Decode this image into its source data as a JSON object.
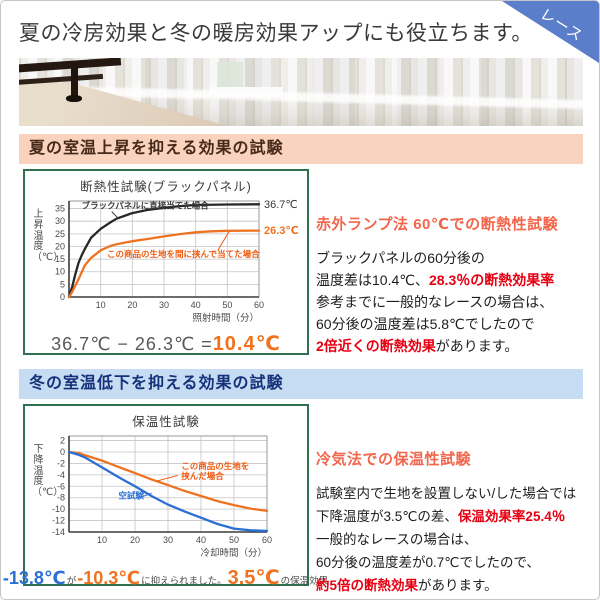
{
  "header": {
    "headline": "夏の冷房効果と冬の暖房効果アップにも役立ちます。",
    "ribbon": {
      "label": "レース",
      "bg_color": "#5b7ecb",
      "text_color": "#ffffff"
    }
  },
  "sections": [
    {
      "header": "夏の室温上昇を抑える効果の試験",
      "header_bg": "#f9d3bd",
      "header_color": "#47291a",
      "equation": [
        {
          "t": "36.7℃ − 26.3℃ = ",
          "s": "g"
        },
        {
          "t": "10.4℃",
          "s": "obig"
        }
      ],
      "aside": {
        "heading": "赤外ランプ法 60℃での断熱性試験",
        "heading_color": "#f2664c",
        "lines": [
          [
            {
              "t": "ブラックパネルの60分後の"
            }
          ],
          [
            {
              "t": "温度差は10.4℃、"
            },
            {
              "t": "28.3％の断熱効果率",
              "s": "red"
            }
          ],
          [
            {
              "t": "参考までに一般的なレースの場合は、"
            }
          ],
          [
            {
              "t": "60分後の温度差は5.8℃でしたので"
            }
          ],
          [
            {
              "t": "2倍近くの断熱効果",
              "s": "red"
            },
            {
              "t": "があります。"
            }
          ]
        ]
      }
    },
    {
      "header": "冬の室温低下を抑える効果の試験",
      "header_bg": "#c6dcf3",
      "header_color": "#14317a",
      "equation": [
        {
          "t": "-13.8℃",
          "s": "bluebig"
        },
        {
          "t": "が",
          "s": "tiny"
        },
        {
          "t": "-10.3℃",
          "s": "orbig"
        },
        {
          "t": "に抑えられました。",
          "s": "tiny"
        },
        {
          "t": "3.5℃",
          "s": "orbig2"
        },
        {
          "t": "の保温効果",
          "s": "tiny"
        }
      ],
      "aside": {
        "heading": "冷気法での保温性試験",
        "heading_color": "#f2664c",
        "lines": [
          [
            {
              "t": "試験室内で生地を設置しない/した場合では"
            }
          ],
          [
            {
              "t": "下降温度が3.5℃の差、"
            },
            {
              "t": "保温効果率25.4％",
              "s": "red"
            }
          ],
          [
            {
              "t": "一般的なレースの場合は、"
            }
          ],
          [
            {
              "t": "60分後の温度差が0.7℃でしたので、"
            }
          ],
          [
            {
              "t": "約5倍の断熱効果",
              "s": "red"
            },
            {
              "t": "があります。"
            }
          ]
        ]
      }
    }
  ],
  "chart_data": [
    {
      "type": "line",
      "title": "断熱性試験(ブラックパネル)",
      "xlabel": "照射時間（分）",
      "ylabel": "上昇温度（℃）",
      "xlim": [
        0,
        60
      ],
      "ylim": [
        0,
        38
      ],
      "xticks": [
        10,
        20,
        30,
        40,
        50,
        60
      ],
      "yticks": [
        0,
        5,
        10,
        15,
        20,
        25,
        30,
        35
      ],
      "grid": true,
      "series": [
        {
          "name": "ブラックパネルに直接当てた場合",
          "color": "#282828",
          "points": [
            [
              0,
              0
            ],
            [
              1,
              4
            ],
            [
              2,
              9
            ],
            [
              3,
              13.5
            ],
            [
              4,
              16.5
            ],
            [
              5,
              19
            ],
            [
              7,
              23.5
            ],
            [
              10,
              27
            ],
            [
              13,
              29.5
            ],
            [
              15,
              31
            ],
            [
              20,
              33.2
            ],
            [
              25,
              34.5
            ],
            [
              30,
              35.3
            ],
            [
              35,
              36
            ],
            [
              40,
              36.4
            ],
            [
              50,
              36.6
            ],
            [
              60,
              36.7
            ]
          ]
        },
        {
          "name": "この商品の生地を間に挟んで当てた場合",
          "color": "#ee7321",
          "points": [
            [
              0,
              0
            ],
            [
              1,
              2
            ],
            [
              2,
              4.5
            ],
            [
              3,
              7
            ],
            [
              5,
              12.5
            ],
            [
              7,
              15.5
            ],
            [
              10,
              18.5
            ],
            [
              13,
              20.2
            ],
            [
              15,
              20.9
            ],
            [
              20,
              22.1
            ],
            [
              25,
              23
            ],
            [
              30,
              24
            ],
            [
              35,
              24.9
            ],
            [
              40,
              25.6
            ],
            [
              45,
              26
            ],
            [
              50,
              26.2
            ],
            [
              60,
              26.3
            ]
          ]
        }
      ],
      "annotations": [
        {
          "lines": [
            "ブラックパネルに直接当てた場合"
          ],
          "color": "#3a3a3a",
          "bold": true,
          "x": 4,
          "y": 35.0,
          "leader": [
            13.5,
            33.8,
            15.5,
            31.2
          ]
        },
        {
          "lines": [
            "この商品の生地を間に挟んで当てた場合"
          ],
          "color": "#ee5a10",
          "bold": true,
          "x": 12,
          "y": 15.8,
          "leader": [
            47,
            18.5,
            50.5,
            25.8
          ]
        }
      ],
      "right_labels": [
        {
          "label": "36.7℃",
          "value": 36.7,
          "color": "#3a3a3a",
          "bold": false
        },
        {
          "label": "26.3℃",
          "value": 26.3,
          "color": "#f0721e",
          "bold": true
        }
      ]
    },
    {
      "type": "line",
      "title": "保温性試験",
      "xlabel": "冷却時間（分）",
      "ylabel": "下降温度（℃）",
      "xlim": [
        0,
        60
      ],
      "ylim": [
        -14,
        2.8
      ],
      "xticks": [
        10,
        20,
        30,
        40,
        50,
        60
      ],
      "yticks": [
        2,
        0,
        -2,
        -4,
        -6,
        -8,
        -10,
        -12,
        -14
      ],
      "grid": true,
      "series": [
        {
          "name": "この商品の生地を挟んだ場合",
          "color": "#ee7321",
          "points": [
            [
              0,
              0
            ],
            [
              3,
              -0.2
            ],
            [
              5,
              -0.6
            ],
            [
              10,
              -1.5
            ],
            [
              15,
              -2.6
            ],
            [
              20,
              -3.7
            ],
            [
              25,
              -4.8
            ],
            [
              30,
              -5.8
            ],
            [
              35,
              -6.8
            ],
            [
              40,
              -7.7
            ],
            [
              45,
              -8.6
            ],
            [
              50,
              -9.3
            ],
            [
              55,
              -9.9
            ],
            [
              60,
              -10.3
            ]
          ]
        },
        {
          "name": "空試験",
          "color": "#2c6fd4",
          "points": [
            [
              0,
              0
            ],
            [
              3,
              -0.5
            ],
            [
              5,
              -1
            ],
            [
              10,
              -2.7
            ],
            [
              15,
              -4.4
            ],
            [
              20,
              -6
            ],
            [
              25,
              -7.7
            ],
            [
              30,
              -9.2
            ],
            [
              35,
              -10.4
            ],
            [
              40,
              -11.5
            ],
            [
              45,
              -12.6
            ],
            [
              50,
              -13.4
            ],
            [
              55,
              -13.7
            ],
            [
              60,
              -13.8
            ]
          ]
        }
      ],
      "annotations": [
        {
          "lines": [
            "この商品の生地を",
            "挟んだ場合"
          ],
          "color": "#ee5a10",
          "bold": true,
          "x": 34,
          "y": -3.0,
          "leader": [
            33,
            -4.1,
            26.5,
            -5.1
          ]
        },
        {
          "lines": [
            "空試験"
          ],
          "color": "#2c6fd4",
          "bold": true,
          "x": 15,
          "y": -8.1,
          "leader": [
            21.5,
            -8.0,
            25,
            -7.2
          ]
        }
      ],
      "right_labels": []
    }
  ]
}
